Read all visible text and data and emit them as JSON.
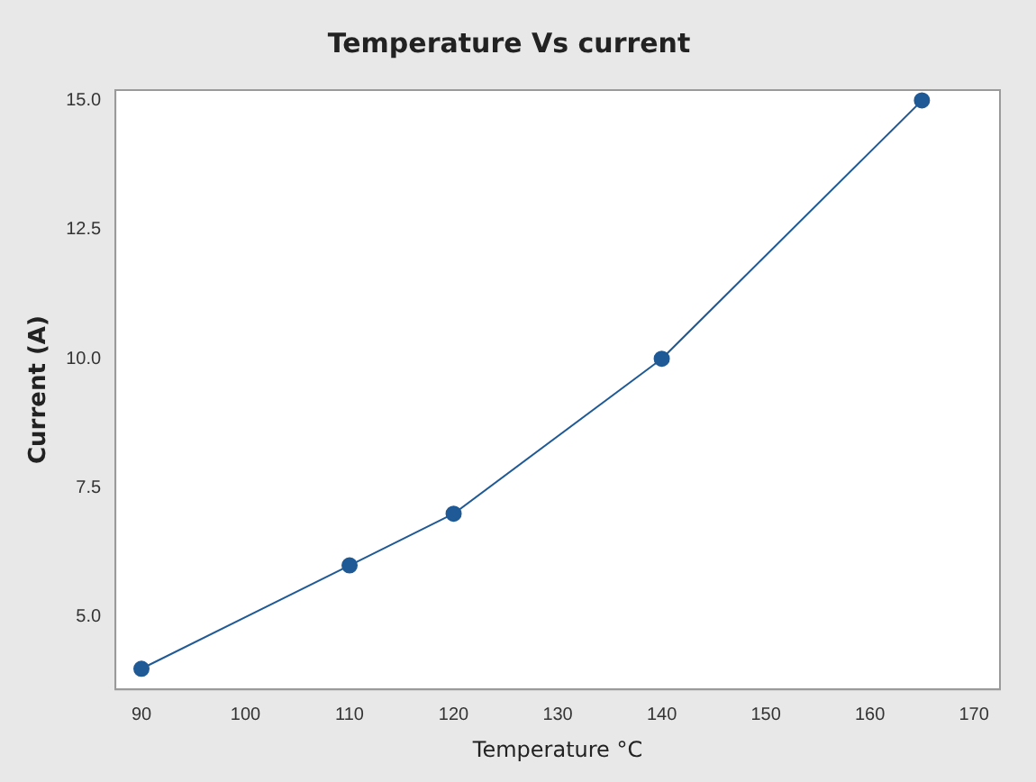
{
  "chart_data": {
    "type": "line",
    "title": "Temperature Vs current",
    "xlabel": "Temperature °C",
    "ylabel": "Current (A)",
    "x": [
      90,
      110,
      120,
      140,
      165
    ],
    "series": [
      {
        "color": "#1f5a96",
        "values": [
          4,
          6,
          7,
          10,
          15
        ]
      }
    ],
    "xlim": [
      87.5,
      172.5
    ],
    "xticks": [
      90,
      100,
      110,
      120,
      130,
      140,
      150,
      160,
      170
    ],
    "ylim": [
      3.6,
      15.2
    ],
    "yticks": [
      {
        "value": 5,
        "label": "5.0"
      },
      {
        "value": 7.5,
        "label": "7.5"
      },
      {
        "value": 10,
        "label": "10.0"
      },
      {
        "value": 12.5,
        "label": "12.5"
      },
      {
        "value": 15,
        "label": "15.0"
      }
    ],
    "grid": false,
    "legend": false,
    "marker": "circle",
    "line_style": "solid"
  }
}
